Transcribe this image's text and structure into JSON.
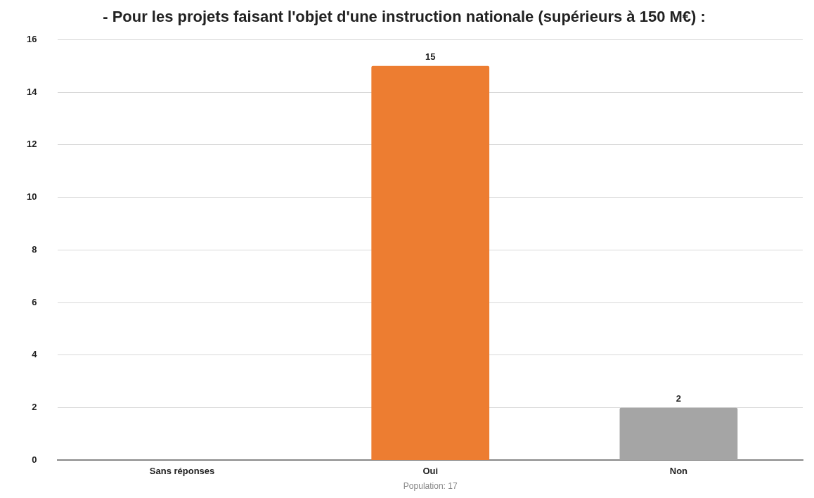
{
  "chart_data": {
    "type": "bar",
    "title": "- Pour les projets faisant l'objet d'une instruction nationale (supérieurs à 150 M€) :",
    "categories": [
      "Sans réponses",
      "Oui",
      "Non"
    ],
    "values": [
      0,
      15,
      2
    ],
    "colors": [
      "#d9d9d9",
      "#ed7d31",
      "#a5a5a5"
    ],
    "value_labels": [
      null,
      "15",
      "2"
    ],
    "ylim": [
      0,
      16
    ],
    "yticks": [
      0,
      2,
      4,
      6,
      8,
      10,
      12,
      14,
      16
    ],
    "grid": "y",
    "annotations": [
      "Population: 17"
    ]
  }
}
